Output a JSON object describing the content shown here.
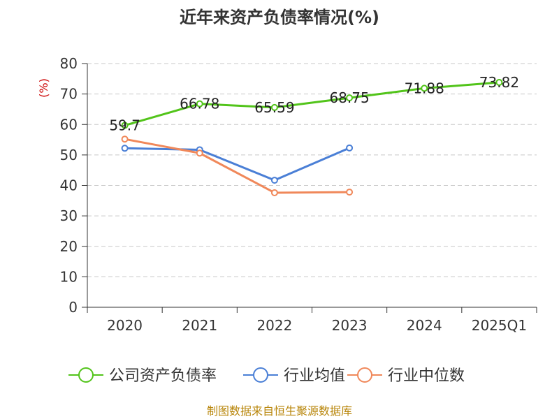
{
  "chart_data": {
    "type": "line",
    "title": "近年来资产负债率情况(%)",
    "ylabel": "(%)",
    "xlabel": "",
    "categories": [
      "2020",
      "2021",
      "2022",
      "2023",
      "2024",
      "2025Q1"
    ],
    "ylim": [
      0,
      80
    ],
    "yticks": [
      0,
      10,
      20,
      30,
      40,
      50,
      60,
      70,
      80
    ],
    "grid": true,
    "legend_position": "bottom",
    "series": [
      {
        "name": "公司资产负债率",
        "color": "#52c41a",
        "values": [
          59.7,
          66.78,
          65.59,
          68.75,
          71.88,
          73.82
        ],
        "labels": [
          "59.7",
          "66.78",
          "65.59",
          "68.75",
          "71.88",
          "73.82"
        ]
      },
      {
        "name": "行业均值",
        "color": "#4a7fd6",
        "values": [
          52.2,
          51.7,
          41.7,
          52.3,
          null,
          null
        ]
      },
      {
        "name": "行业中位数",
        "color": "#f0885a",
        "values": [
          55.2,
          50.6,
          37.6,
          37.8,
          null,
          null
        ]
      }
    ],
    "source": "制图数据来自恒生聚源数据库"
  }
}
